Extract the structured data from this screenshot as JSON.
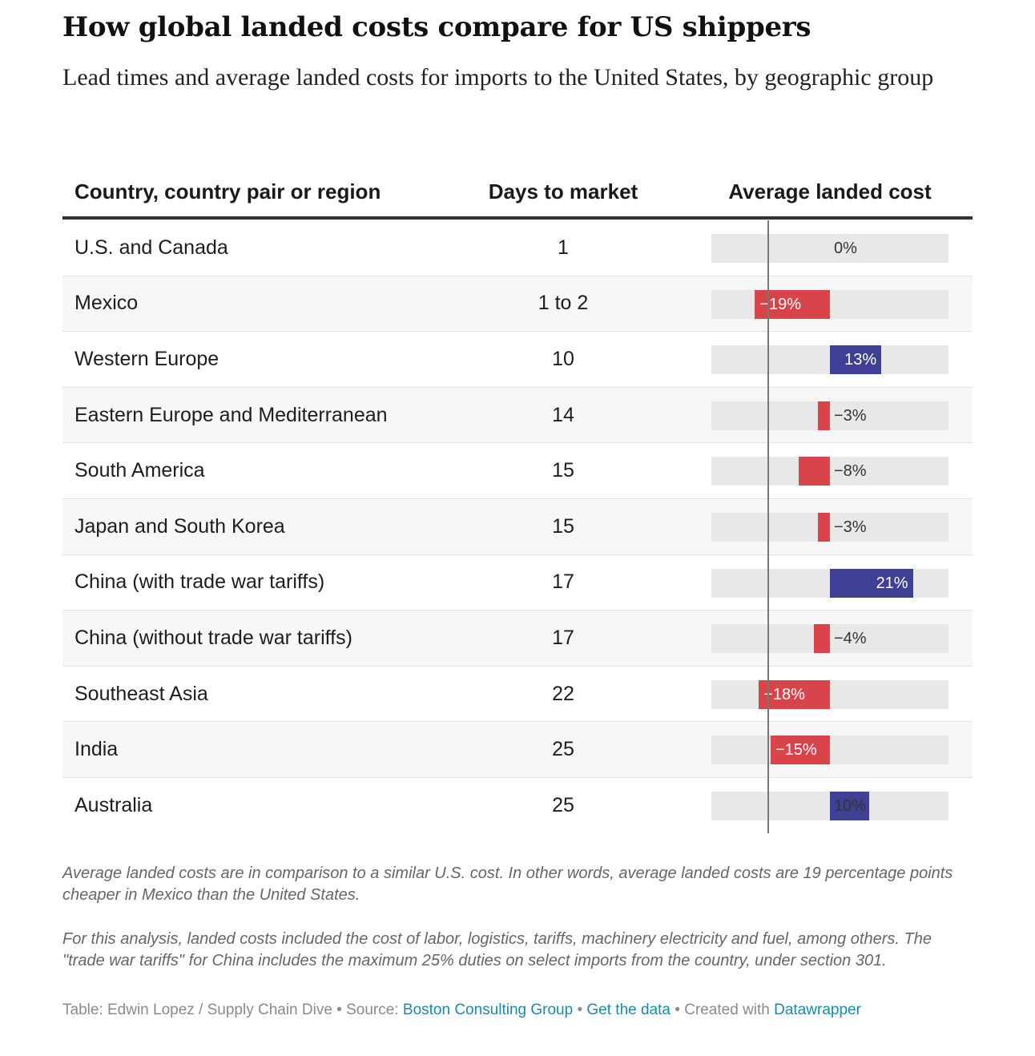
{
  "title": "How global landed costs compare for US shippers",
  "subtitle": "Lead times and average landed costs for imports to the United States, by geographic group",
  "colors": {
    "negative": "#d9444a",
    "positive": "#3f3f94",
    "track": "#e8e8e8",
    "link": "#1a8aa8"
  },
  "chart_data": {
    "type": "table",
    "columns": [
      "Country, country pair or region",
      "Days to market",
      "Average landed cost"
    ],
    "bar_range": [
      -30,
      30
    ],
    "rows": [
      {
        "region": "U.S. and Canada",
        "days": "1",
        "cost": 0,
        "cost_label": "0%"
      },
      {
        "region": "Mexico",
        "days": "1 to 2",
        "cost": -19,
        "cost_label": "−19%"
      },
      {
        "region": "Western Europe",
        "days": "10",
        "cost": 13,
        "cost_label": "13%"
      },
      {
        "region": "Eastern Europe and Mediterranean",
        "days": "14",
        "cost": -3,
        "cost_label": "−3%"
      },
      {
        "region": "South America",
        "days": "15",
        "cost": -8,
        "cost_label": "−8%"
      },
      {
        "region": "Japan and South Korea",
        "days": "15",
        "cost": -3,
        "cost_label": "−3%"
      },
      {
        "region": "China (with trade war tariffs)",
        "days": "17",
        "cost": 21,
        "cost_label": "21%"
      },
      {
        "region": "China (without trade war tariffs)",
        "days": "17",
        "cost": -4,
        "cost_label": "−4%"
      },
      {
        "region": "Southeast Asia",
        "days": "22",
        "cost": -18,
        "cost_label": "−18%"
      },
      {
        "region": "India",
        "days": "25",
        "cost": -15,
        "cost_label": "−15%"
      },
      {
        "region": "Australia",
        "days": "25",
        "cost": 10,
        "cost_label": "10%"
      }
    ]
  },
  "notes": {
    "note1": "Average landed costs are in comparison to a similar U.S. cost. In other words, average landed costs are 19 percentage points cheaper in Mexico than the United States.",
    "note2": "For this analysis, landed costs included the cost of labor, logistics, tariffs, machinery electricity and fuel, among others. The \"trade war tariffs\" for China includes the maximum 25% duties on select imports from the country, under section 301."
  },
  "footer": {
    "prefix": "Table: Edwin Lopez / Supply Chain Dive • Source: ",
    "source_link": "Boston Consulting Group",
    "sep1": " • ",
    "data_link": "Get the data",
    "sep2": " • Created with ",
    "tool_link": "Datawrapper"
  }
}
